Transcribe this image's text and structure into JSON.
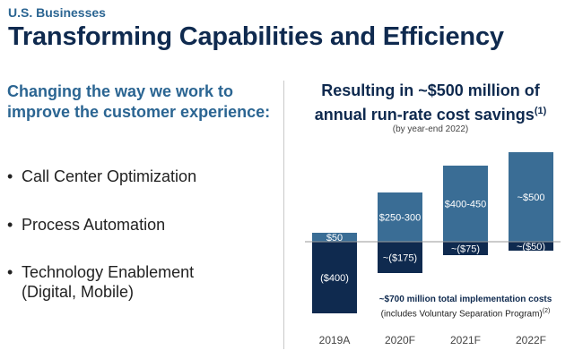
{
  "header": {
    "section": "U.S. Businesses",
    "title": "Transforming Capabilities and Efficiency"
  },
  "left": {
    "heading": "Changing the way we work to improve the customer experience:",
    "bullets": [
      {
        "line1": "Call Center Optimization",
        "line2": ""
      },
      {
        "line1": "Process Automation",
        "line2": ""
      },
      {
        "line1": "Technology Enablement",
        "line2": "(Digital, Mobile)"
      }
    ],
    "bullet_symbol": "•"
  },
  "right": {
    "heading_main": "Resulting in ~$500 million of annual run-rate cost savings",
    "heading_footnote": "(1)",
    "subheading": "(by year-end 2022)",
    "implementation_bold": "~$700 million total implementation costs",
    "implementation_note": "(includes Voluntary Separation Program)",
    "implementation_footnote": "(2)"
  },
  "chart_data": {
    "type": "bar",
    "categories": [
      "2019A",
      "2020F",
      "2021F",
      "2022F"
    ],
    "series": [
      {
        "name": "Run-rate cost savings",
        "color": "#3a6d95",
        "values": [
          50,
          275,
          425,
          500
        ],
        "labels": [
          "$50",
          "$250-300",
          "$400-450",
          "~$500"
        ]
      },
      {
        "name": "Implementation costs",
        "color": "#0f2a4f",
        "values": [
          -400,
          -175,
          -75,
          -50
        ],
        "labels": [
          "($400)",
          "~($175)",
          "~($75)",
          "~($50)"
        ]
      }
    ],
    "ylim": [
      -400,
      500
    ],
    "colors": {
      "savings": "#3a6d95",
      "costs": "#0f2a4f",
      "baseline": "#9a9a9a"
    }
  }
}
